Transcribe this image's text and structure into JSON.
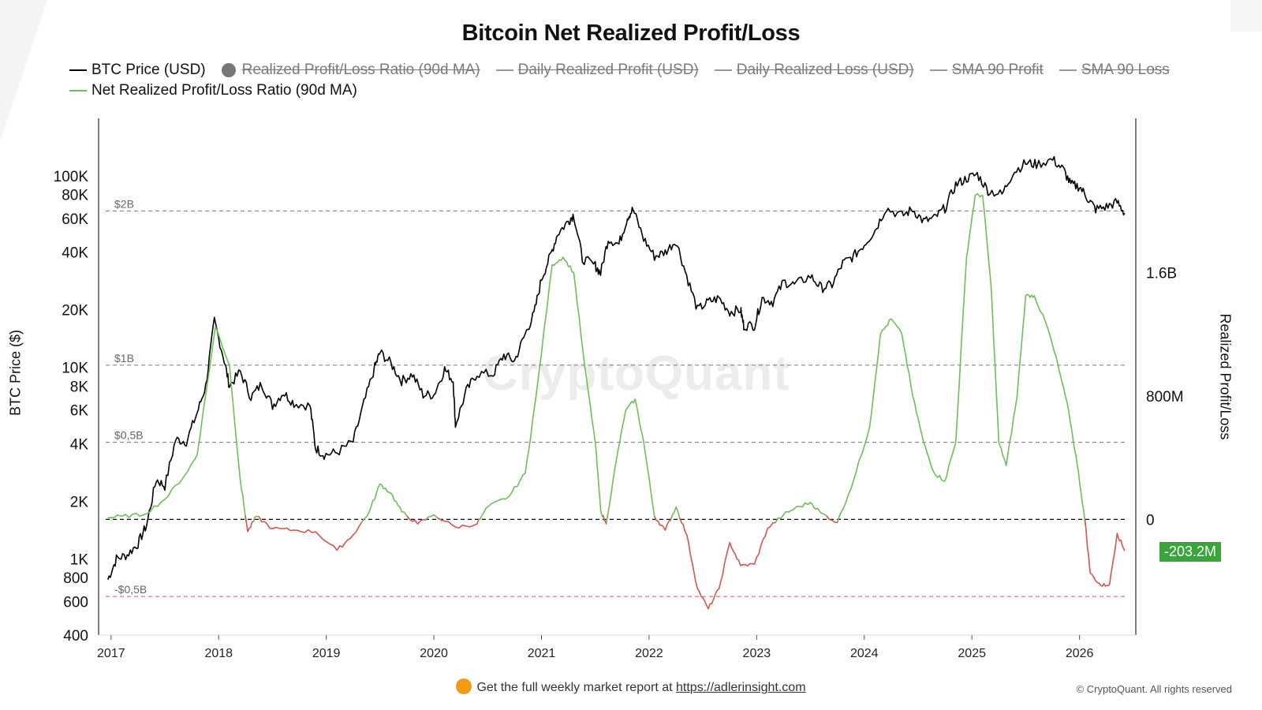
{
  "title": "Bitcoin Net Realized Profit/Loss",
  "legend": [
    {
      "label": "BTC Price (USD)",
      "color": "#000000",
      "active": true,
      "shape": "line"
    },
    {
      "label": "Realized Profit/Loss Ratio (90d MA)",
      "color": "#777777",
      "active": false,
      "shape": "dot"
    },
    {
      "label": "Daily Realized Profit (USD)",
      "color": "#999999",
      "active": false,
      "shape": "line"
    },
    {
      "label": "Daily Realized Loss (USD)",
      "color": "#999999",
      "active": false,
      "shape": "line"
    },
    {
      "label": "SMA 90 Profit",
      "color": "#999999",
      "active": false,
      "shape": "line"
    },
    {
      "label": "SMA 90 Loss",
      "color": "#999999",
      "active": false,
      "shape": "line"
    },
    {
      "label": "Net Realized Profit/Loss Ratio (90d MA)",
      "color": "#6cbf5a",
      "active": true,
      "shape": "line"
    }
  ],
  "axes": {
    "left_label": "BTC Price ($)",
    "right_label": "Realized Profit/Loss"
  },
  "current_value": "-203.2M",
  "watermark": "CryptoQuant",
  "footer": {
    "text": "Get the full weekly market report at ",
    "link": "https://adlerinsight.com"
  },
  "copyright": "© CryptoQuant. All rights reserved",
  "colors": {
    "price": "#000000",
    "profit": "#6cbf5a",
    "loss": "#d9534f",
    "badge": "#3aa63a"
  },
  "chart_data": {
    "type": "line",
    "x_range": [
      2016.95,
      2026.45
    ],
    "x_ticks": [
      "2017",
      "2018",
      "2019",
      "2020",
      "2021",
      "2022",
      "2023",
      "2024",
      "2025",
      "2026"
    ],
    "left_axis": {
      "scale": "log",
      "range": [
        400,
        200000
      ],
      "ticks": [
        {
          "v": 100000,
          "label": "100K"
        },
        {
          "v": 80000,
          "label": "80K"
        },
        {
          "v": 60000,
          "label": "60K"
        },
        {
          "v": 40000,
          "label": "40K"
        },
        {
          "v": 20000,
          "label": "20K"
        },
        {
          "v": 10000,
          "label": "10K"
        },
        {
          "v": 8000,
          "label": "8K"
        },
        {
          "v": 6000,
          "label": "6K"
        },
        {
          "v": 4000,
          "label": "4K"
        },
        {
          "v": 2000,
          "label": "2K"
        },
        {
          "v": 1000,
          "label": "1K"
        },
        {
          "v": 800,
          "label": "800"
        },
        {
          "v": 600,
          "label": "600"
        },
        {
          "v": 400,
          "label": "400"
        }
      ]
    },
    "right_axis": {
      "scale": "linear",
      "range": [
        -750000000,
        2600000000
      ],
      "ticks": [
        {
          "v": 1600000000,
          "label": "1.6B"
        },
        {
          "v": 800000000,
          "label": "800M"
        },
        {
          "v": 0,
          "label": "0"
        }
      ],
      "ref_lines": [
        {
          "v": 2000000000,
          "label": "$2B"
        },
        {
          "v": 1000000000,
          "label": "$1B"
        },
        {
          "v": 500000000,
          "label": "$0,5B"
        },
        {
          "v": 0,
          "label": ""
        },
        {
          "v": -500000000,
          "label": "-$0,5B"
        }
      ]
    },
    "series": [
      {
        "name": "BTC Price (USD)",
        "axis": "left",
        "color": "#000000",
        "points": [
          [
            2016.97,
            780
          ],
          [
            2017.05,
            1000
          ],
          [
            2017.15,
            1050
          ],
          [
            2017.25,
            1200
          ],
          [
            2017.33,
            1500
          ],
          [
            2017.42,
            2600
          ],
          [
            2017.5,
            2400
          ],
          [
            2017.6,
            4200
          ],
          [
            2017.7,
            4100
          ],
          [
            2017.8,
            5800
          ],
          [
            2017.88,
            8000
          ],
          [
            2017.96,
            17500
          ],
          [
            2018.05,
            11000
          ],
          [
            2018.1,
            8000
          ],
          [
            2018.2,
            9500
          ],
          [
            2018.3,
            7000
          ],
          [
            2018.4,
            8200
          ],
          [
            2018.5,
            6300
          ],
          [
            2018.6,
            7400
          ],
          [
            2018.7,
            6500
          ],
          [
            2018.85,
            6300
          ],
          [
            2018.9,
            3800
          ],
          [
            2018.98,
            3500
          ],
          [
            2019.1,
            3600
          ],
          [
            2019.25,
            4100
          ],
          [
            2019.35,
            6500
          ],
          [
            2019.45,
            10000
          ],
          [
            2019.5,
            12000
          ],
          [
            2019.6,
            10500
          ],
          [
            2019.7,
            8500
          ],
          [
            2019.8,
            9200
          ],
          [
            2019.9,
            7200
          ],
          [
            2020.0,
            7200
          ],
          [
            2020.1,
            9800
          ],
          [
            2020.18,
            8500
          ],
          [
            2020.2,
            5000
          ],
          [
            2020.3,
            7500
          ],
          [
            2020.4,
            9300
          ],
          [
            2020.55,
            9200
          ],
          [
            2020.65,
            11600
          ],
          [
            2020.75,
            10800
          ],
          [
            2020.85,
            15000
          ],
          [
            2020.93,
            19000
          ],
          [
            2021.0,
            29000
          ],
          [
            2021.08,
            38000
          ],
          [
            2021.15,
            50000
          ],
          [
            2021.25,
            58000
          ],
          [
            2021.3,
            63000
          ],
          [
            2021.38,
            37000
          ],
          [
            2021.5,
            34000
          ],
          [
            2021.55,
            31000
          ],
          [
            2021.62,
            47000
          ],
          [
            2021.72,
            44000
          ],
          [
            2021.8,
            61000
          ],
          [
            2021.85,
            67000
          ],
          [
            2021.95,
            47000
          ],
          [
            2022.05,
            38000
          ],
          [
            2022.15,
            40000
          ],
          [
            2022.25,
            46000
          ],
          [
            2022.35,
            30000
          ],
          [
            2022.45,
            20000
          ],
          [
            2022.55,
            22000
          ],
          [
            2022.65,
            23000
          ],
          [
            2022.75,
            19500
          ],
          [
            2022.85,
            20000
          ],
          [
            2022.88,
            16500
          ],
          [
            2022.98,
            16600
          ],
          [
            2023.05,
            23000
          ],
          [
            2023.15,
            22000
          ],
          [
            2023.25,
            28000
          ],
          [
            2023.35,
            27000
          ],
          [
            2023.5,
            30000
          ],
          [
            2023.6,
            26000
          ],
          [
            2023.7,
            27000
          ],
          [
            2023.8,
            35000
          ],
          [
            2023.9,
            38000
          ],
          [
            2024.0,
            44000
          ],
          [
            2024.1,
            52000
          ],
          [
            2024.2,
            68000
          ],
          [
            2024.35,
            62000
          ],
          [
            2024.45,
            67000
          ],
          [
            2024.55,
            58000
          ],
          [
            2024.65,
            60000
          ],
          [
            2024.75,
            68000
          ],
          [
            2024.85,
            90000
          ],
          [
            2024.95,
            97000
          ],
          [
            2025.05,
            102000
          ],
          [
            2025.15,
            84000
          ],
          [
            2025.28,
            80000
          ],
          [
            2025.38,
            104000
          ],
          [
            2025.5,
            117000
          ],
          [
            2025.6,
            115000
          ],
          [
            2025.75,
            122000
          ],
          [
            2025.85,
            108000
          ],
          [
            2025.92,
            90000
          ],
          [
            2026.0,
            88000
          ],
          [
            2026.08,
            76000
          ],
          [
            2026.15,
            67000
          ],
          [
            2026.25,
            69000
          ],
          [
            2026.35,
            73000
          ],
          [
            2026.42,
            64000
          ]
        ]
      },
      {
        "name": "Net Realized Profit/Loss Ratio (90d MA)",
        "axis": "right",
        "color": "#6cbf5a",
        "negative_color": "#d9534f",
        "points": [
          [
            2016.97,
            10000000
          ],
          [
            2017.1,
            20000000
          ],
          [
            2017.3,
            30000000
          ],
          [
            2017.5,
            130000000
          ],
          [
            2017.7,
            300000000
          ],
          [
            2017.8,
            420000000
          ],
          [
            2017.97,
            1250000000
          ],
          [
            2018.1,
            1000000000
          ],
          [
            2018.2,
            260000000
          ],
          [
            2018.27,
            -80000000
          ],
          [
            2018.35,
            20000000
          ],
          [
            2018.5,
            -60000000
          ],
          [
            2018.7,
            -70000000
          ],
          [
            2018.9,
            -80000000
          ],
          [
            2019.1,
            -200000000
          ],
          [
            2019.25,
            -100000000
          ],
          [
            2019.4,
            50000000
          ],
          [
            2019.5,
            230000000
          ],
          [
            2019.6,
            170000000
          ],
          [
            2019.7,
            50000000
          ],
          [
            2019.85,
            -30000000
          ],
          [
            2020.0,
            30000000
          ],
          [
            2020.2,
            -50000000
          ],
          [
            2020.4,
            -30000000
          ],
          [
            2020.5,
            80000000
          ],
          [
            2020.7,
            150000000
          ],
          [
            2020.85,
            300000000
          ],
          [
            2020.95,
            800000000
          ],
          [
            2021.1,
            1650000000
          ],
          [
            2021.2,
            1700000000
          ],
          [
            2021.3,
            1600000000
          ],
          [
            2021.4,
            1000000000
          ],
          [
            2021.5,
            500000000
          ],
          [
            2021.55,
            60000000
          ],
          [
            2021.6,
            -30000000
          ],
          [
            2021.7,
            400000000
          ],
          [
            2021.78,
            700000000
          ],
          [
            2021.87,
            780000000
          ],
          [
            2021.95,
            500000000
          ],
          [
            2022.05,
            20000000
          ],
          [
            2022.15,
            -70000000
          ],
          [
            2022.25,
            80000000
          ],
          [
            2022.35,
            -100000000
          ],
          [
            2022.45,
            -450000000
          ],
          [
            2022.55,
            -580000000
          ],
          [
            2022.65,
            -450000000
          ],
          [
            2022.75,
            -150000000
          ],
          [
            2022.85,
            -300000000
          ],
          [
            2022.98,
            -290000000
          ],
          [
            2023.1,
            -60000000
          ],
          [
            2023.25,
            30000000
          ],
          [
            2023.35,
            70000000
          ],
          [
            2023.5,
            110000000
          ],
          [
            2023.6,
            40000000
          ],
          [
            2023.75,
            -20000000
          ],
          [
            2023.9,
            250000000
          ],
          [
            2024.05,
            600000000
          ],
          [
            2024.15,
            1200000000
          ],
          [
            2024.25,
            1300000000
          ],
          [
            2024.35,
            1200000000
          ],
          [
            2024.45,
            800000000
          ],
          [
            2024.55,
            500000000
          ],
          [
            2024.65,
            300000000
          ],
          [
            2024.75,
            250000000
          ],
          [
            2024.85,
            500000000
          ],
          [
            2024.95,
            1700000000
          ],
          [
            2025.03,
            2100000000
          ],
          [
            2025.1,
            2100000000
          ],
          [
            2025.18,
            1500000000
          ],
          [
            2025.25,
            500000000
          ],
          [
            2025.32,
            350000000
          ],
          [
            2025.42,
            800000000
          ],
          [
            2025.5,
            1450000000
          ],
          [
            2025.58,
            1450000000
          ],
          [
            2025.7,
            1250000000
          ],
          [
            2025.8,
            1000000000
          ],
          [
            2025.9,
            700000000
          ],
          [
            2025.98,
            350000000
          ],
          [
            2026.05,
            0
          ],
          [
            2026.1,
            -350000000
          ],
          [
            2026.2,
            -430000000
          ],
          [
            2026.28,
            -420000000
          ],
          [
            2026.35,
            -90000000
          ],
          [
            2026.42,
            -203200000
          ]
        ]
      }
    ]
  }
}
